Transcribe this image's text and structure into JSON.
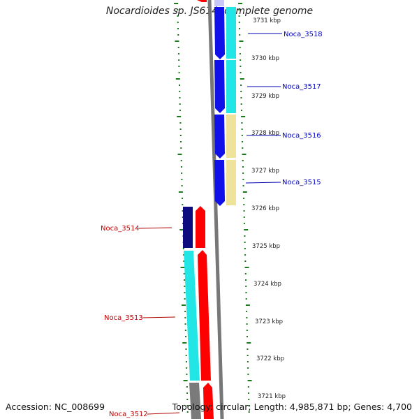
{
  "title": "Nocardioides sp. JS614, complete genome",
  "footer": {
    "accession": "Accession: NC_008699",
    "topology": "Topology: circular; Length: 4,985,871 bp; Genes: 4,700"
  },
  "kbp_ticks": [
    "3731 kbp",
    "3730 kbp",
    "3729 kbp",
    "3728 kbp",
    "3727 kbp",
    "3726 kbp",
    "3725 kbp",
    "3724 kbp",
    "3723 kbp",
    "3722 kbp",
    "3721 kbp"
  ],
  "genes": [
    {
      "label": "Noca_3518",
      "strand": "plus",
      "color": "#0a0acc"
    },
    {
      "label": "Noca_3517",
      "strand": "plus",
      "color": "#0a0acc"
    },
    {
      "label": "Noca_3516",
      "strand": "plus",
      "color": "#0a0acc"
    },
    {
      "label": "Noca_3515",
      "strand": "plus",
      "color": "#0a0acc"
    },
    {
      "label": "Noca_3514",
      "strand": "minus",
      "color": "#cc0000"
    },
    {
      "label": "Noca_3513",
      "strand": "minus",
      "color": "#cc0000"
    },
    {
      "label": "Noca_3512",
      "strand": "minus",
      "color": "#cc0000"
    }
  ],
  "colors": {
    "backbone": "#777777",
    "ticks": "#1a7a1a",
    "gene_blue": "#1010e8",
    "gene_red": "#ff0000",
    "cog_cyan": "#22e6e6",
    "cog_khaki": "#efe29a",
    "cog_navy": "#0c0c80",
    "cog_gray": "#7a7a7a"
  }
}
